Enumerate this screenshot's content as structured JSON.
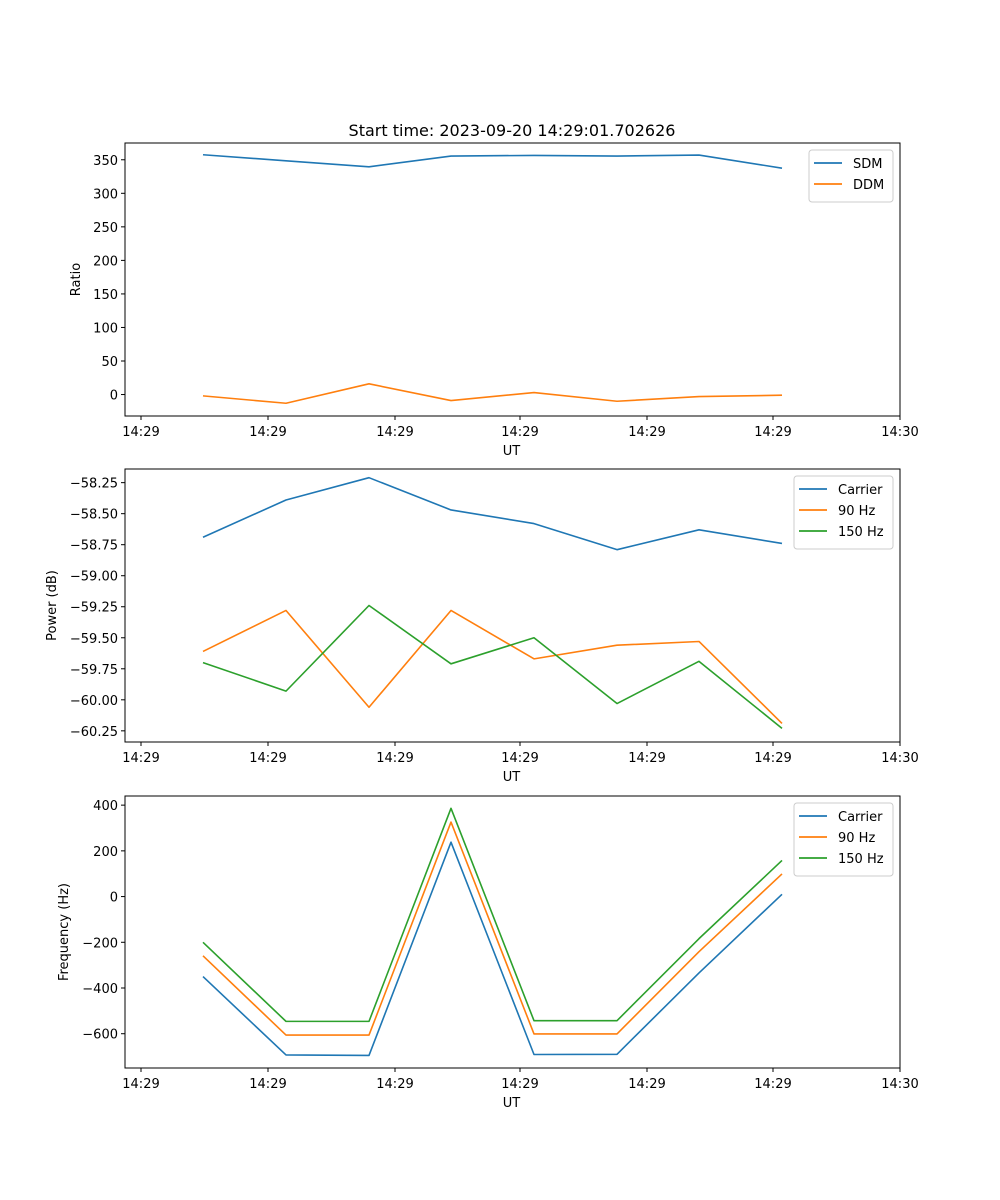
{
  "figure": {
    "title": "Start time: 2023-09-20 14:29:01.702626",
    "colors": {
      "blue": "#1f77b4",
      "orange": "#ff7f0e",
      "green": "#2ca02c"
    }
  },
  "chart_data": [
    {
      "type": "line",
      "title": "Start time: 2023-09-20 14:29:01.702626",
      "xlabel": "UT",
      "ylabel": "Ratio",
      "x_tick_labels": [
        "14:29",
        "14:29",
        "14:29",
        "14:29",
        "14:29",
        "14:29",
        "14:30"
      ],
      "y_ticks": [
        0,
        50,
        100,
        150,
        200,
        250,
        300,
        350
      ],
      "y_tick_labels": [
        "0",
        "50",
        "100",
        "150",
        "200",
        "250",
        "300",
        "350"
      ],
      "ylim": [
        -32,
        375
      ],
      "x": [
        1,
        2,
        3,
        4,
        5,
        6,
        7,
        8
      ],
      "legend_position": "top-right",
      "series": [
        {
          "name": "SDM",
          "color": "#1f77b4",
          "values": [
            357.5,
            348.5,
            339.5,
            355.5,
            356.5,
            355.5,
            357.0,
            337.5
          ]
        },
        {
          "name": "DDM",
          "color": "#ff7f0e",
          "values": [
            -2,
            -13,
            16,
            -9,
            3,
            -10,
            -3,
            -1
          ]
        }
      ]
    },
    {
      "type": "line",
      "xlabel": "UT",
      "ylabel": "Power (dB)",
      "x_tick_labels": [
        "14:29",
        "14:29",
        "14:29",
        "14:29",
        "14:29",
        "14:29",
        "14:30"
      ],
      "y_ticks": [
        -58.25,
        -58.5,
        -58.75,
        -59.0,
        -59.25,
        -59.5,
        -59.75,
        -60.0,
        -60.25
      ],
      "y_tick_labels": [
        "−58.25",
        "−58.50",
        "−58.75",
        "−59.00",
        "−59.25",
        "−59.50",
        "−59.75",
        "−60.00",
        "−60.25"
      ],
      "ylim": [
        -60.34,
        -58.14
      ],
      "x": [
        1,
        2,
        3,
        4,
        5,
        6,
        7,
        8
      ],
      "legend_position": "top-right",
      "series": [
        {
          "name": "Carrier",
          "color": "#1f77b4",
          "values": [
            -58.69,
            -58.39,
            -58.21,
            -58.47,
            -58.58,
            -58.79,
            -58.63,
            -58.74
          ]
        },
        {
          "name": "90 Hz",
          "color": "#ff7f0e",
          "values": [
            -59.61,
            -59.28,
            -60.06,
            -59.28,
            -59.67,
            -59.56,
            -59.53,
            -60.19
          ]
        },
        {
          "name": "150 Hz",
          "color": "#2ca02c",
          "values": [
            -59.7,
            -59.93,
            -59.24,
            -59.71,
            -59.5,
            -60.03,
            -59.69,
            -60.23
          ]
        }
      ]
    },
    {
      "type": "line",
      "xlabel": "UT",
      "ylabel": "Frequency (Hz)",
      "x_tick_labels": [
        "14:29",
        "14:29",
        "14:29",
        "14:29",
        "14:29",
        "14:29",
        "14:30"
      ],
      "y_ticks": [
        400,
        200,
        0,
        -200,
        -400,
        -600
      ],
      "y_tick_labels": [
        "400",
        "200",
        "0",
        "−200",
        "−400",
        "−600"
      ],
      "ylim": [
        -750,
        440
      ],
      "x": [
        1,
        2,
        3,
        4,
        5,
        6,
        7,
        8
      ],
      "legend_position": "top-right",
      "series": [
        {
          "name": "Carrier",
          "color": "#1f77b4",
          "values": [
            -350,
            -693,
            -695,
            238,
            -691,
            -690,
            -334,
            10
          ]
        },
        {
          "name": "90 Hz",
          "color": "#ff7f0e",
          "values": [
            -259,
            -606,
            -606,
            326,
            -601,
            -601,
            -241,
            99
          ]
        },
        {
          "name": "150 Hz",
          "color": "#2ca02c",
          "values": [
            -200,
            -546,
            -546,
            386,
            -543,
            -543,
            -184,
            158
          ]
        }
      ]
    }
  ]
}
